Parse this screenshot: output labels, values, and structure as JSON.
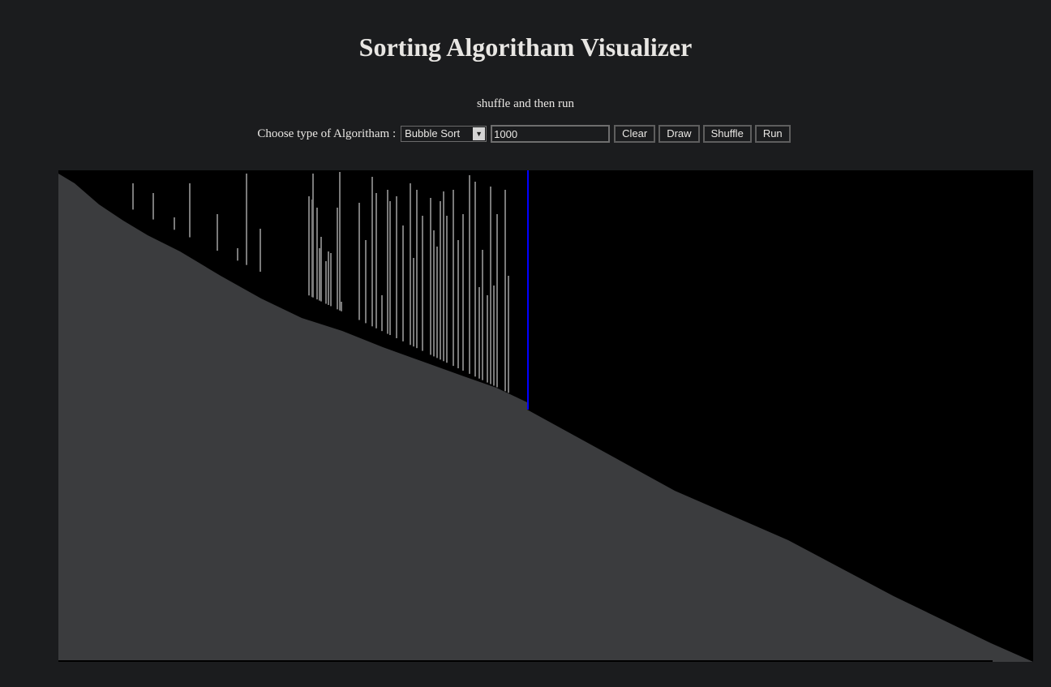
{
  "header": {
    "title": "Sorting Algoritham Visualizer"
  },
  "hint": "shuffle and then run",
  "controls": {
    "algorithm_label": "Choose type of Algoritham :",
    "algorithm_selected": "Bubble Sort",
    "count_value": "1000",
    "clear_label": "Clear",
    "draw_label": "Draw",
    "shuffle_label": "Shuffle",
    "run_label": "Run"
  },
  "visualizer": {
    "background_color": "#000000",
    "bar_color": "#3b3c3e",
    "outlier_color": "#7a7a7a",
    "cursor_color": "#0000ff"
  }
}
